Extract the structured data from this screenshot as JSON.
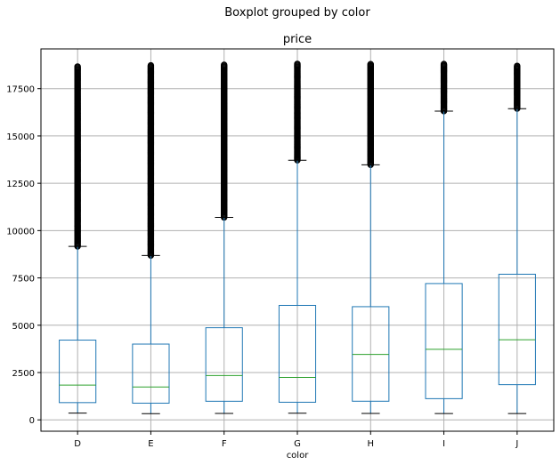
{
  "figure": {
    "suptitle": "Boxplot grouped by color"
  },
  "chart_data": {
    "type": "box",
    "title": "price",
    "xlabel": "color",
    "ylabel": "",
    "categories": [
      "D",
      "E",
      "F",
      "G",
      "H",
      "I",
      "J"
    ],
    "y_ticks": [
      0,
      2500,
      5000,
      7500,
      10000,
      12500,
      15000,
      17500
    ],
    "ylim": [
      -600,
      19600
    ],
    "grid": true,
    "boxes": [
      {
        "category": "D",
        "whisker_low": 357,
        "q1": 911,
        "median": 1838,
        "q3": 4214,
        "whisker_high": 9164,
        "outliers_range": [
          9170,
          18693
        ]
      },
      {
        "category": "E",
        "whisker_low": 326,
        "q1": 882,
        "median": 1739,
        "q3": 4003,
        "whisker_high": 8682,
        "outliers_range": [
          8690,
          18731
        ]
      },
      {
        "category": "F",
        "whisker_low": 342,
        "q1": 982,
        "median": 2344,
        "q3": 4868,
        "whisker_high": 10695,
        "outliers_range": [
          10700,
          18791
        ]
      },
      {
        "category": "G",
        "whisker_low": 354,
        "q1": 931,
        "median": 2242,
        "q3": 6048,
        "whisker_high": 13714,
        "outliers_range": [
          13720,
          18818
        ]
      },
      {
        "category": "H",
        "whisker_low": 337,
        "q1": 984,
        "median": 3460,
        "q3": 5980,
        "whisker_high": 13474,
        "outliers_range": [
          13480,
          18803
        ]
      },
      {
        "category": "I",
        "whisker_low": 334,
        "q1": 1120,
        "median": 3730,
        "q3": 7202,
        "whisker_high": 16310,
        "outliers_range": [
          16320,
          18823
        ]
      },
      {
        "category": "J",
        "whisker_low": 335,
        "q1": 1860,
        "median": 4234,
        "q3": 7695,
        "whisker_high": 16440,
        "outliers_range": [
          16450,
          18710
        ]
      }
    ],
    "colors": {
      "box": "#1f77b4",
      "median": "#2ca02c",
      "grid": "#b0b0b0",
      "outlier": "#000000"
    }
  }
}
